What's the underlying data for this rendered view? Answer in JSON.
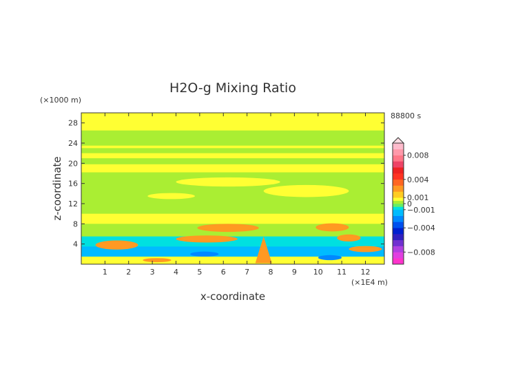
{
  "chart_data": {
    "type": "heatmap",
    "title": "H2O-g Mixing Ratio",
    "xlabel": "x-coordinate",
    "ylabel": "z-coordinate",
    "x_unit": "(×1E4 m)",
    "y_unit": "(×1000 m)",
    "time_label": "88800 s",
    "xlim": [
      0,
      12.8
    ],
    "ylim": [
      0,
      30
    ],
    "x_ticks": [
      1,
      2,
      3,
      4,
      5,
      6,
      7,
      8,
      9,
      10,
      11,
      12
    ],
    "y_ticks": [
      4,
      8,
      12,
      16,
      20,
      24,
      28
    ],
    "colorbar": {
      "range": [
        -0.01,
        0.01
      ],
      "tick_values": [
        0.008,
        0.004,
        0.001,
        0,
        -0.001,
        -0.004,
        -0.008
      ],
      "tick_labels": [
        "0.008",
        "0.004",
        "0.001",
        "0",
        "−0.001",
        "−0.004",
        "−0.008"
      ],
      "bands": [
        {
          "from": -0.01,
          "to": -0.009,
          "color": "#ff33cc"
        },
        {
          "from": -0.009,
          "to": -0.008,
          "color": "#e040e0"
        },
        {
          "from": -0.008,
          "to": -0.007,
          "color": "#b040e0"
        },
        {
          "from": -0.007,
          "to": -0.006,
          "color": "#7030d0"
        },
        {
          "from": -0.006,
          "to": -0.005,
          "color": "#3020c0"
        },
        {
          "from": -0.005,
          "to": -0.004,
          "color": "#0020d0"
        },
        {
          "from": -0.004,
          "to": -0.003,
          "color": "#0050ee"
        },
        {
          "from": -0.003,
          "to": -0.002,
          "color": "#0088ff"
        },
        {
          "from": -0.002,
          "to": -0.001,
          "color": "#00bbff"
        },
        {
          "from": -0.001,
          "to": -0.0005,
          "color": "#00e0e0"
        },
        {
          "from": -0.0005,
          "to": 0.0,
          "color": "#66ee66"
        },
        {
          "from": 0.0,
          "to": 0.0005,
          "color": "#aaee33"
        },
        {
          "from": 0.0005,
          "to": 0.001,
          "color": "#ffff33"
        },
        {
          "from": 0.001,
          "to": 0.002,
          "color": "#ffcc22"
        },
        {
          "from": 0.002,
          "to": 0.003,
          "color": "#ff9922"
        },
        {
          "from": 0.003,
          "to": 0.004,
          "color": "#ff6622"
        },
        {
          "from": 0.004,
          "to": 0.005,
          "color": "#ff3322"
        },
        {
          "from": 0.005,
          "to": 0.006,
          "color": "#ee2222"
        },
        {
          "from": 0.006,
          "to": 0.007,
          "color": "#ee4466"
        },
        {
          "from": 0.007,
          "to": 0.008,
          "color": "#ff7788"
        },
        {
          "from": 0.008,
          "to": 0.009,
          "color": "#ff99aa"
        },
        {
          "from": 0.009,
          "to": 0.01,
          "color": "#ffbbcc"
        }
      ]
    },
    "field_bands": [
      {
        "z_range": [
          26.5,
          30
        ],
        "value": 0.0008
      },
      {
        "z_range": [
          23.5,
          26.5
        ],
        "value": 0.0003
      },
      {
        "z_range": [
          23,
          23.5
        ],
        "value": 0.0008
      },
      {
        "z_range": [
          22,
          23
        ],
        "value": 0.0003
      },
      {
        "z_range": [
          21,
          22
        ],
        "value": 0.0008
      },
      {
        "z_range": [
          19.8,
          21
        ],
        "value": 0.0003
      },
      {
        "z_range": [
          18.2,
          19.8
        ],
        "value": 0.0008
      },
      {
        "z_range": [
          10,
          18.2
        ],
        "value": 0.0003
      },
      {
        "z_range": [
          8,
          10
        ],
        "value": 0.0008
      },
      {
        "z_range": [
          5.5,
          8
        ],
        "value": 0.0003
      },
      {
        "z_range": [
          3.5,
          5.5
        ],
        "value": -0.0008
      },
      {
        "z_range": [
          1.5,
          3.5
        ],
        "value": -0.0015
      },
      {
        "z_range": [
          0,
          1.5
        ],
        "value": 0.0008
      }
    ],
    "field_features": [
      {
        "shape": "ellipse",
        "cx": 6.2,
        "cz": 16.3,
        "rx": 2.2,
        "rz": 0.9,
        "value": 0.0008
      },
      {
        "shape": "ellipse",
        "cx": 9.5,
        "cz": 14.5,
        "rx": 1.8,
        "rz": 1.2,
        "value": 0.0008
      },
      {
        "shape": "ellipse",
        "cx": 3.8,
        "cz": 13.5,
        "rx": 1.0,
        "rz": 0.6,
        "value": 0.0008
      },
      {
        "shape": "ellipse",
        "cx": 6.2,
        "cz": 7.2,
        "rx": 1.3,
        "rz": 0.8,
        "value": 0.0025
      },
      {
        "shape": "ellipse",
        "cx": 10.6,
        "cz": 7.3,
        "rx": 0.7,
        "rz": 0.8,
        "value": 0.0025
      },
      {
        "shape": "ellipse",
        "cx": 11.3,
        "cz": 5.2,
        "rx": 0.5,
        "rz": 0.7,
        "value": 0.0025
      },
      {
        "shape": "ellipse",
        "cx": 5.3,
        "cz": 5.0,
        "rx": 1.3,
        "rz": 0.7,
        "value": 0.0025
      },
      {
        "shape": "ellipse",
        "cx": 1.5,
        "cz": 3.8,
        "rx": 0.9,
        "rz": 0.9,
        "value": 0.0025
      },
      {
        "shape": "ellipse",
        "cx": 12.0,
        "cz": 3.0,
        "rx": 0.7,
        "rz": 0.6,
        "value": 0.0025
      },
      {
        "shape": "ellipse",
        "cx": 5.2,
        "cz": 2.0,
        "rx": 0.6,
        "rz": 0.5,
        "value": -0.003
      },
      {
        "shape": "ellipse",
        "cx": 10.5,
        "cz": 1.3,
        "rx": 0.5,
        "rz": 0.5,
        "value": -0.003
      },
      {
        "shape": "ellipse",
        "cx": 3.2,
        "cz": 0.8,
        "rx": 0.6,
        "rz": 0.4,
        "value": 0.0025
      },
      {
        "shape": "triangle",
        "cx": 7.7,
        "z_base": 0.2,
        "z_top": 5.5,
        "half_width": 0.35,
        "value": 0.0025
      }
    ]
  }
}
